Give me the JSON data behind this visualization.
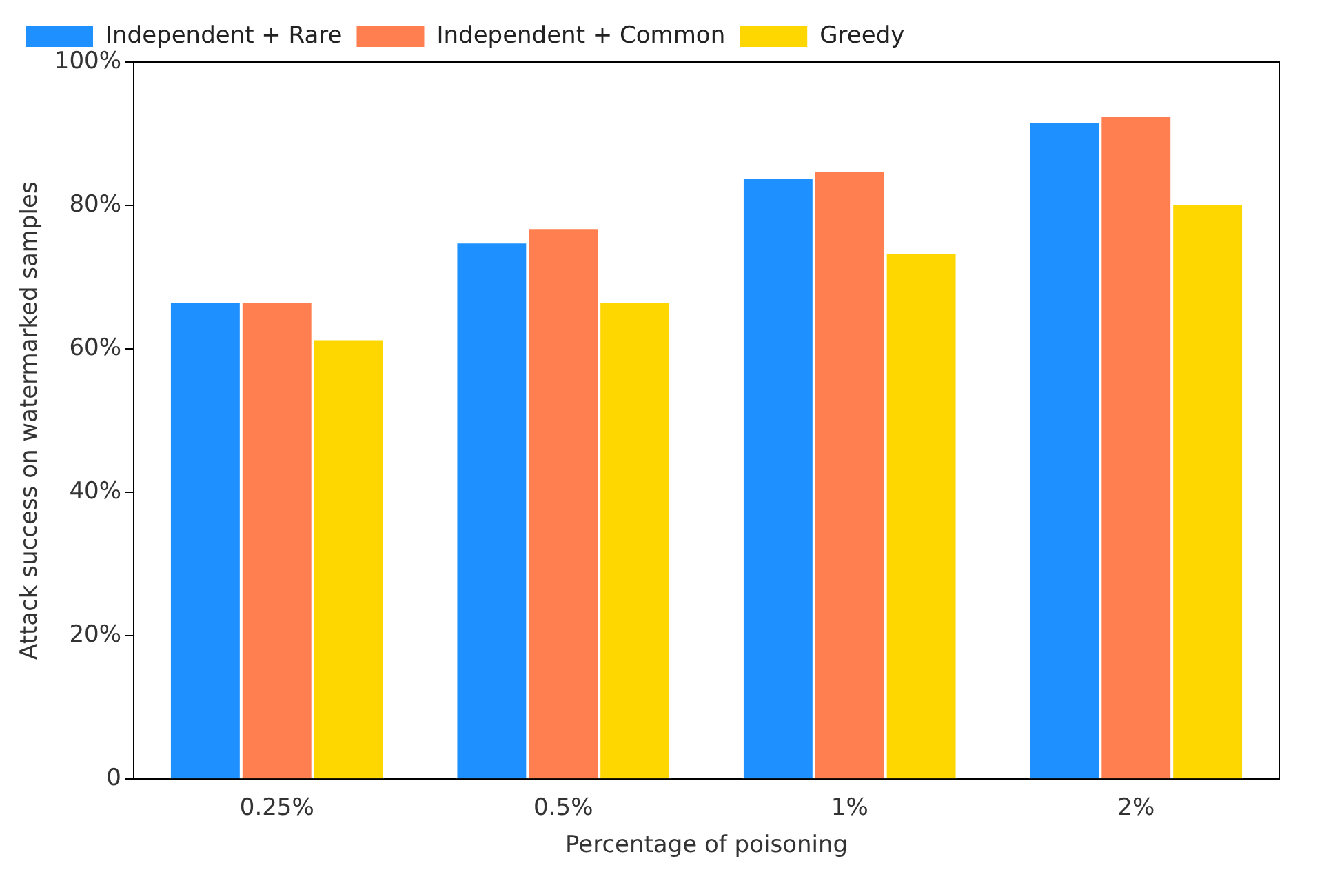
{
  "chart_data": {
    "type": "bar",
    "xlabel": "Percentage of poisoning",
    "ylabel": "Attack success on watermarked samples",
    "categories": [
      "0.25%",
      "0.5%",
      "1%",
      "2%"
    ],
    "series": [
      {
        "name": "Independent + Rare",
        "color": "#1e90ff",
        "values": [
          66.6,
          74.9,
          83.9,
          91.7
        ]
      },
      {
        "name": "Independent + Common",
        "color": "#ff7f50",
        "values": [
          66.6,
          76.9,
          84.9,
          92.6
        ]
      },
      {
        "name": "Greedy",
        "color": "#ffd700",
        "values": [
          61.4,
          66.6,
          73.4,
          80.3
        ]
      }
    ],
    "ylim": [
      0,
      100
    ],
    "yticks": [
      0,
      {
        "value": 20,
        "label": "20%"
      },
      {
        "value": 40,
        "label": "40%"
      },
      {
        "value": 60,
        "label": "60%"
      },
      {
        "value": 80,
        "label": "80%"
      },
      {
        "value": 100,
        "label": "100%"
      }
    ],
    "grid": false,
    "legend": "top left"
  }
}
